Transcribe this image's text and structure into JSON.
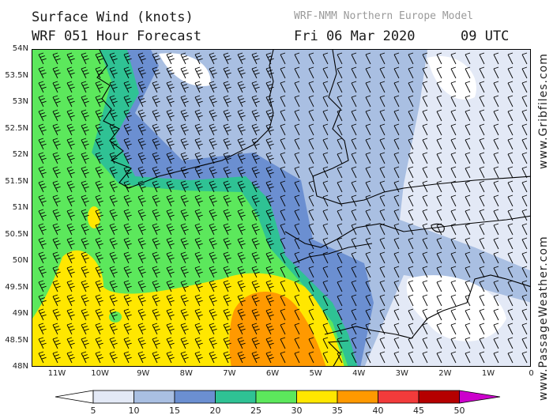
{
  "header": {
    "title_line1": "Surface Wind (knots)",
    "title_line2": "WRF 051 Hour Forecast",
    "model_name": "WRF-NMM Northern Europe Model",
    "forecast_date": "Fri 06 Mar 2020",
    "forecast_time": "09 UTC"
  },
  "axes": {
    "latitude_labels": [
      "54N",
      "53.5N",
      "53N",
      "52.5N",
      "52N",
      "51.5N",
      "51N",
      "50.5N",
      "50N",
      "49.5N",
      "49N",
      "48.5N",
      "48N"
    ],
    "longitude_labels": [
      "11W",
      "10W",
      "9W",
      "8W",
      "7W",
      "6W",
      "5W",
      "4W",
      "3W",
      "2W",
      "1W",
      "0"
    ]
  },
  "legend": {
    "ticks": [
      "5",
      "10",
      "15",
      "20",
      "25",
      "30",
      "35",
      "40",
      "45",
      "50"
    ],
    "colors": [
      "#e3e9f6",
      "#a9bfe2",
      "#6b8fd1",
      "#2fc294",
      "#5ce85c",
      "#ffe700",
      "#ff9900",
      "#f23b3b",
      "#b50000",
      "#cc00cc"
    ]
  },
  "watermarks": {
    "site1": "www.Gribfiles.com",
    "site2": "www.PassageWeather.com"
  }
}
